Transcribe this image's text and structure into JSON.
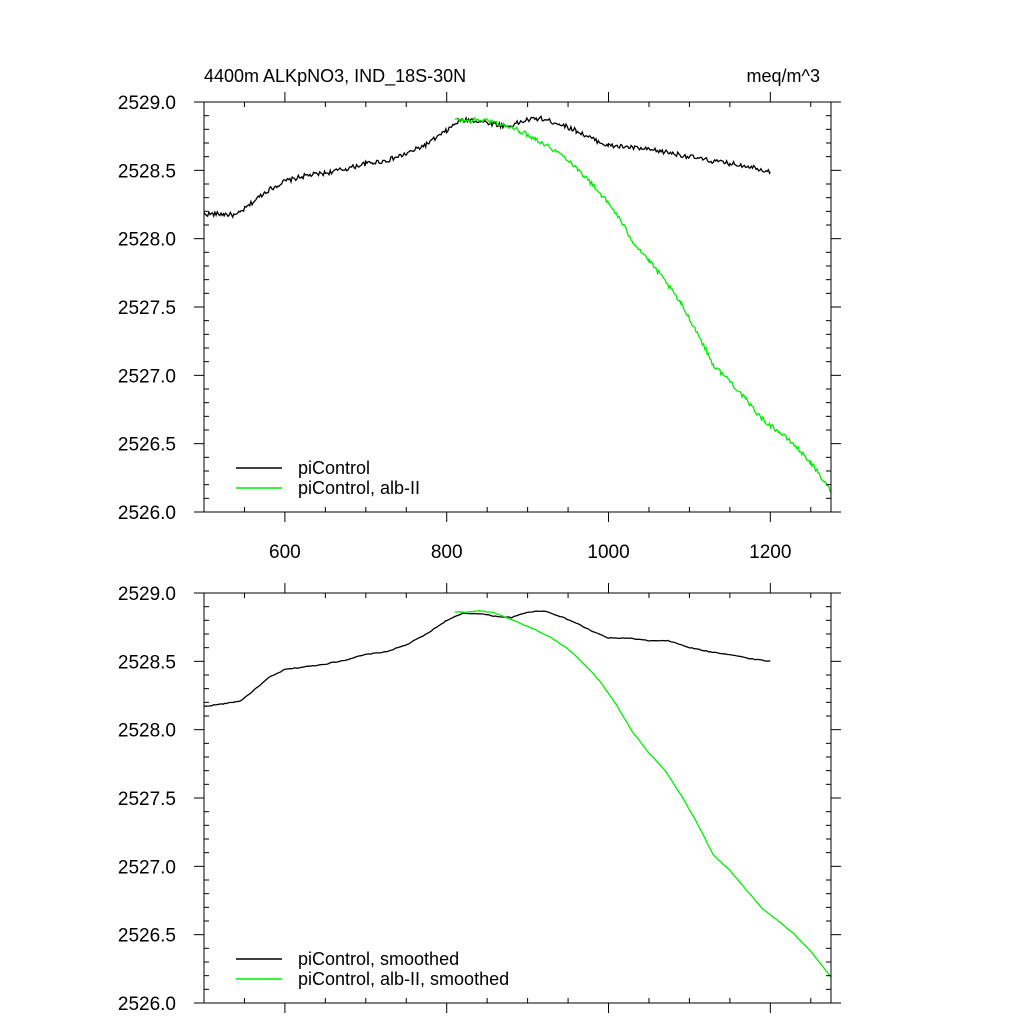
{
  "title_left": "4400m ALKpNO3, IND_18S-30N",
  "title_right": "meq/m^3",
  "colors": {
    "piControl": "#000000",
    "albII": "#00ee00",
    "axis": "#000000"
  },
  "chart_data": [
    {
      "type": "line",
      "title": "4400m ALKpNO3, IND_18S-30N",
      "units": "meq/m^3",
      "xlim": [
        500,
        1275
      ],
      "ylim": [
        2526.0,
        2529.0
      ],
      "x_ticks": [
        600,
        800,
        1000,
        1200
      ],
      "x_tick_labels": [
        "600",
        "800",
        "1000",
        "1200"
      ],
      "y_ticks": [
        2526.0,
        2526.5,
        2527.0,
        2527.5,
        2528.0,
        2528.5,
        2529.0
      ],
      "y_tick_labels": [
        "2526.0",
        "2526.5",
        "2527.0",
        "2527.5",
        "2528.0",
        "2528.5",
        "2529.0"
      ],
      "grid": false,
      "legend_position": "bottom-left",
      "series": [
        {
          "name": "piControl",
          "color": "#000000",
          "x": [
            500,
            525,
            540,
            555,
            575,
            600,
            625,
            650,
            675,
            700,
            725,
            750,
            775,
            800,
            815,
            830,
            850,
            875,
            900,
            915,
            940,
            960,
            980,
            1000,
            1025,
            1050,
            1075,
            1100,
            1125,
            1150,
            1175,
            1200
          ],
          "y": [
            2528.18,
            2528.18,
            2528.17,
            2528.24,
            2528.34,
            2528.42,
            2528.46,
            2528.48,
            2528.51,
            2528.55,
            2528.57,
            2528.62,
            2528.69,
            2528.79,
            2528.86,
            2528.87,
            2528.85,
            2528.82,
            2528.87,
            2528.88,
            2528.84,
            2528.79,
            2528.73,
            2528.68,
            2528.67,
            2528.65,
            2528.63,
            2528.6,
            2528.57,
            2528.55,
            2528.53,
            2528.49
          ]
        },
        {
          "name": "piControl, alb-II",
          "color": "#00ee00",
          "x": [
            810,
            825,
            840,
            855,
            870,
            890,
            910,
            930,
            950,
            970,
            990,
            1010,
            1030,
            1050,
            1070,
            1090,
            1110,
            1130,
            1150,
            1170,
            1190,
            1210,
            1230,
            1250,
            1275
          ],
          "y": [
            2528.87,
            2528.86,
            2528.87,
            2528.86,
            2528.83,
            2528.79,
            2528.73,
            2528.66,
            2528.58,
            2528.46,
            2528.33,
            2528.18,
            2527.98,
            2527.84,
            2527.69,
            2527.52,
            2527.31,
            2527.07,
            2526.96,
            2526.82,
            2526.68,
            2526.59,
            2526.49,
            2526.36,
            2526.15
          ]
        }
      ],
      "legend": [
        "piControl",
        "piControl, alb-II"
      ]
    },
    {
      "type": "line",
      "xlim": [
        500,
        1275
      ],
      "ylim": [
        2526.0,
        2529.0
      ],
      "x_ticks": [
        600,
        800,
        1000,
        1200
      ],
      "x_tick_labels": [],
      "y_ticks": [
        2526.0,
        2526.5,
        2527.0,
        2527.5,
        2528.0,
        2528.5,
        2529.0
      ],
      "y_tick_labels": [
        "2526.0",
        "2526.5",
        "2527.0",
        "2527.5",
        "2528.0",
        "2528.5",
        "2529.0"
      ],
      "grid": false,
      "legend_position": "bottom-left",
      "series": [
        {
          "name": "piControl, smoothed",
          "color": "#000000",
          "x": [
            500,
            525,
            545,
            560,
            580,
            600,
            625,
            650,
            675,
            700,
            725,
            750,
            775,
            800,
            820,
            840,
            860,
            880,
            900,
            920,
            940,
            960,
            980,
            1000,
            1025,
            1050,
            1075,
            1100,
            1125,
            1150,
            1175,
            1200
          ],
          "y": [
            2528.17,
            2528.19,
            2528.21,
            2528.28,
            2528.38,
            2528.44,
            2528.46,
            2528.48,
            2528.51,
            2528.55,
            2528.57,
            2528.62,
            2528.7,
            2528.8,
            2528.85,
            2528.85,
            2528.83,
            2528.82,
            2528.86,
            2528.87,
            2528.83,
            2528.78,
            2528.72,
            2528.67,
            2528.67,
            2528.65,
            2528.65,
            2528.6,
            2528.57,
            2528.55,
            2528.52,
            2528.5
          ]
        },
        {
          "name": "piControl, alb-II, smoothed",
          "color": "#00ee00",
          "x": [
            810,
            825,
            840,
            855,
            870,
            890,
            910,
            930,
            950,
            970,
            990,
            1010,
            1030,
            1050,
            1070,
            1090,
            1110,
            1130,
            1150,
            1170,
            1190,
            1210,
            1230,
            1250,
            1275
          ],
          "y": [
            2528.86,
            2528.86,
            2528.87,
            2528.86,
            2528.83,
            2528.78,
            2528.73,
            2528.67,
            2528.59,
            2528.48,
            2528.35,
            2528.18,
            2527.98,
            2527.83,
            2527.7,
            2527.52,
            2527.31,
            2527.08,
            2526.97,
            2526.83,
            2526.69,
            2526.6,
            2526.5,
            2526.38,
            2526.19
          ]
        }
      ],
      "legend": [
        "piControl, smoothed",
        "piControl, alb-II, smoothed"
      ]
    }
  ]
}
